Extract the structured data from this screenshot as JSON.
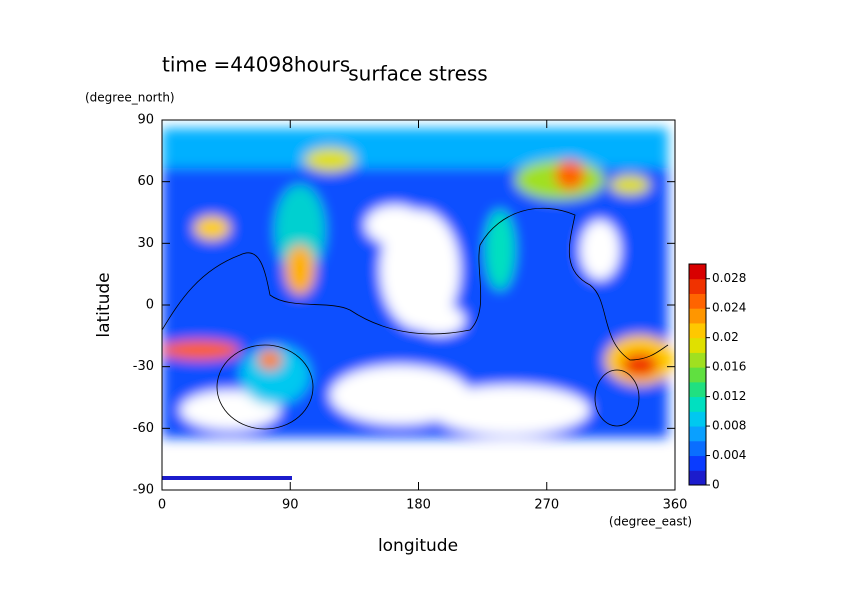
{
  "chart_data": {
    "type": "contour",
    "title": "surface stress",
    "subtitle": "time =44098hours",
    "x_label": "longitude",
    "x_unit": "(degree_east)",
    "y_label": "latitude",
    "y_unit": "(degree_north)",
    "xlim": [
      0,
      360
    ],
    "xticks": [
      0,
      90,
      180,
      270,
      360
    ],
    "ylim": [
      -90,
      90
    ],
    "yticks": [
      -90,
      -60,
      -30,
      0,
      30,
      60,
      90
    ],
    "colorbar": {
      "lim": [
        0,
        0.03
      ],
      "ticks": [
        0,
        0.004,
        0.008,
        0.012,
        0.016,
        0.02,
        0.024,
        0.028
      ],
      "colors": [
        "#1c1ccc",
        "#0a3cff",
        "#0a6eff",
        "#0aa0ff",
        "#00c8f0",
        "#00e0c0",
        "#20e080",
        "#60e040",
        "#a0e020",
        "#e0e000",
        "#ffc800",
        "#ff9600",
        "#ff6400",
        "#f03200",
        "#d80000"
      ]
    }
  }
}
